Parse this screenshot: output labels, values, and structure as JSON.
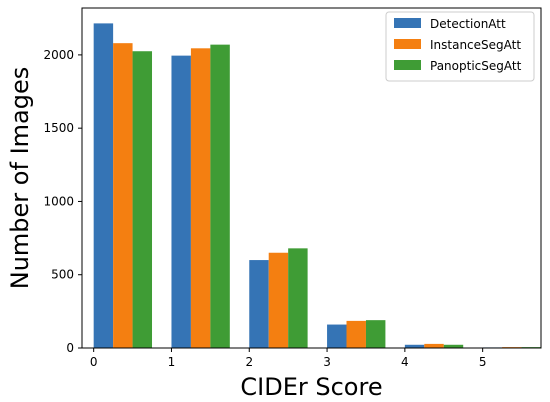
{
  "chart_data": {
    "type": "bar",
    "xlabel": "CIDEr Score",
    "ylabel": "Number of Images",
    "categories": [
      "0",
      "1",
      "2",
      "3",
      "4",
      "5"
    ],
    "x_ticks": [
      0,
      1,
      2,
      3,
      4,
      5
    ],
    "y_ticks": [
      0,
      500,
      1000,
      1500,
      2000
    ],
    "xlim": [
      -0.15,
      5.75
    ],
    "ylim": [
      0,
      2320
    ],
    "legend_position": "top-right",
    "grid": false,
    "series": [
      {
        "name": "DetectionAtt",
        "color": "#3574b5",
        "values": [
          2215,
          1995,
          600,
          160,
          22,
          4
        ]
      },
      {
        "name": "InstanceSegAtt",
        "color": "#f47f11",
        "values": [
          2080,
          2045,
          650,
          185,
          28,
          6
        ]
      },
      {
        "name": "PanopticSegAtt",
        "color": "#3f9c35",
        "values": [
          2025,
          2070,
          680,
          190,
          22,
          6
        ]
      }
    ]
  }
}
